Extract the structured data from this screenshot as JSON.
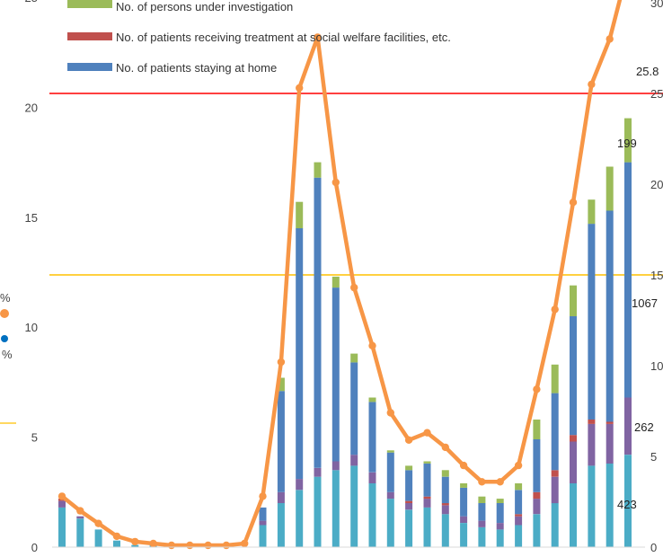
{
  "chart_data": {
    "type": "bar+line",
    "left_axis": {
      "ticks": [
        "0",
        "5",
        "10",
        "15",
        "20",
        "25"
      ],
      "ylim": [
        0,
        25
      ]
    },
    "right_axis": {
      "ticks": [
        "0",
        "5",
        "10",
        "15",
        "20",
        "25",
        "30"
      ],
      "ylim": [
        0,
        30
      ]
    },
    "edge_fragments": [
      "%",
      "%"
    ],
    "legend": [
      {
        "label": "No. of persons under investigation",
        "color": "#9bbb59"
      },
      {
        "label": "No. of patients receiving treatment at social welfare facilities, etc.",
        "color": "#c0504d"
      },
      {
        "label": "No. of patients staying at home",
        "color": "#4f81bd"
      }
    ],
    "bar_stacks": [
      [
        1.8,
        0.3,
        0.1,
        0.0,
        0.0
      ],
      [
        1.3,
        0.1,
        0.0,
        0.0,
        0.0
      ],
      [
        0.8,
        0.0,
        0.0,
        0.0,
        0.0
      ],
      [
        0.3,
        0.0,
        0.0,
        0.0,
        0.0
      ],
      [
        0.1,
        0.0,
        0.0,
        0.0,
        0.0
      ],
      [
        0.1,
        0.0,
        0.0,
        0.0,
        0.0
      ],
      [
        0.1,
        0.0,
        0.0,
        0.0,
        0.0
      ],
      [
        0.1,
        0.0,
        0.0,
        0.0,
        0.0
      ],
      [
        0.1,
        0.0,
        0.0,
        0.0,
        0.0
      ],
      [
        0.1,
        0.0,
        0.0,
        0.0,
        0.0
      ],
      [
        0.0,
        0.0,
        0.0,
        0.0,
        0.0
      ],
      [
        1.0,
        0.2,
        0.0,
        0.6,
        0.0
      ],
      [
        2.0,
        0.5,
        0.0,
        4.6,
        0.6
      ],
      [
        2.6,
        0.5,
        0.0,
        11.4,
        1.2
      ],
      [
        3.2,
        0.4,
        0.0,
        13.2,
        0.7
      ],
      [
        3.5,
        0.4,
        0.0,
        7.9,
        0.5
      ],
      [
        3.7,
        0.5,
        0.0,
        4.2,
        0.4
      ],
      [
        2.9,
        0.5,
        0.0,
        3.2,
        0.2
      ],
      [
        2.2,
        0.3,
        0.0,
        1.8,
        0.1
      ],
      [
        1.7,
        0.3,
        0.1,
        1.4,
        0.2
      ],
      [
        1.8,
        0.4,
        0.1,
        1.5,
        0.1
      ],
      [
        1.5,
        0.4,
        0.1,
        1.2,
        0.3
      ],
      [
        1.1,
        0.3,
        0.0,
        1.3,
        0.2
      ],
      [
        0.9,
        0.3,
        0.0,
        0.8,
        0.3
      ],
      [
        0.8,
        0.3,
        0.0,
        0.9,
        0.2
      ],
      [
        1.0,
        0.4,
        0.1,
        1.1,
        0.3
      ],
      [
        1.5,
        0.7,
        0.3,
        2.4,
        0.9
      ],
      [
        2.0,
        1.2,
        0.3,
        3.5,
        1.3
      ],
      [
        2.9,
        1.9,
        0.3,
        5.4,
        1.4
      ],
      [
        3.7,
        1.9,
        0.2,
        8.9,
        1.1
      ],
      [
        3.8,
        1.8,
        0.1,
        9.6,
        2.0
      ],
      [
        4.2,
        2.6,
        0.0,
        10.7,
        2.0
      ]
    ],
    "line": [
      2.8,
      2.0,
      1.3,
      0.6,
      0.3,
      0.2,
      0.1,
      0.1,
      0.1,
      0.1,
      0.2,
      2.8,
      10.2,
      25.3,
      28.1,
      20.1,
      14.3,
      11.1,
      7.4,
      5.9,
      6.3,
      5.5,
      4.5,
      3.6,
      3.6,
      4.5,
      8.7,
      13.1,
      19.0,
      25.5,
      28.0,
      31.9
    ],
    "line_color": "#f79646",
    "stack_colors": [
      "#4bacc6",
      "#8064a2",
      "#c0504d",
      "#4f81bd",
      "#9bbb59"
    ],
    "ref_lines": [
      {
        "value": 25,
        "axis": "right",
        "color": "#ff0000"
      },
      {
        "value": 15,
        "axis": "right",
        "color": "#ffc000"
      }
    ],
    "annotations": [
      "25.8",
      "199",
      "1067",
      "262",
      "423"
    ]
  }
}
